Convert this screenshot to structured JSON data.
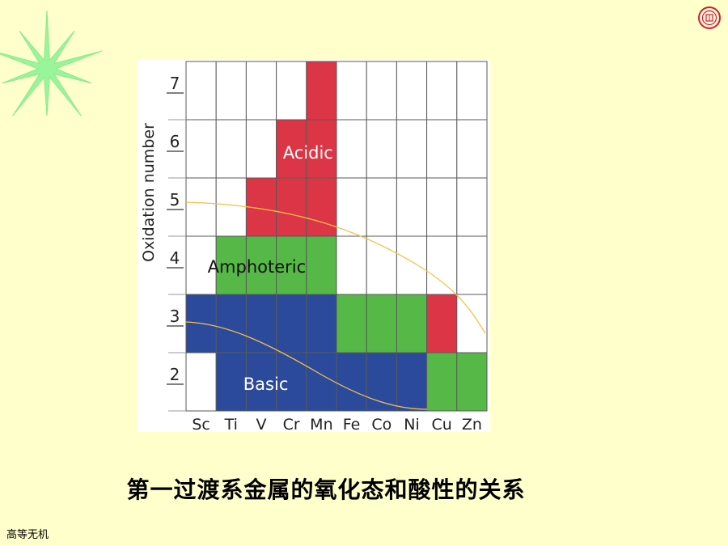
{
  "chart_data": {
    "type": "heatmap",
    "title": "第一过渡系金属的氧化态和酸性的关系",
    "ylabel": "Oxidation number",
    "xlabel": "",
    "categories": [
      "Sc",
      "Ti",
      "V",
      "Cr",
      "Mn",
      "Fe",
      "Co",
      "Ni",
      "Cu",
      "Zn"
    ],
    "y_ticks": [
      "7",
      "6",
      "5",
      "4",
      "3",
      "2"
    ],
    "cells": {
      "7": [
        "",
        "",
        "",
        "",
        "Acidic",
        "",
        "",
        "",
        "",
        ""
      ],
      "6": [
        "",
        "",
        "",
        "Acidic",
        "Acidic",
        "",
        "",
        "",
        "",
        ""
      ],
      "5": [
        "",
        "",
        "Acidic",
        "Acidic",
        "Acidic",
        "",
        "",
        "",
        "",
        ""
      ],
      "4": [
        "",
        "Amphoteric",
        "Amphoteric",
        "Amphoteric",
        "Amphoteric",
        "",
        "",
        "",
        "",
        ""
      ],
      "3": [
        "Basic",
        "Basic",
        "Basic",
        "Basic",
        "Basic",
        "Amphoteric",
        "Amphoteric",
        "Amphoteric",
        "Acidic",
        ""
      ],
      "2": [
        "",
        "Basic",
        "Basic",
        "Basic",
        "Basic",
        "Basic",
        "Basic",
        "Basic",
        "Amphoteric",
        "Amphoteric"
      ]
    },
    "region_labels": [
      "Acidic",
      "Amphoteric",
      "Basic"
    ],
    "colors": {
      "Acidic": "#DC3545",
      "Amphoteric": "#55B847",
      "Basic": "#2B4A9C",
      "empty": "#FFFFFF",
      "curve": "#F5C048"
    }
  },
  "footer": "高等无机"
}
